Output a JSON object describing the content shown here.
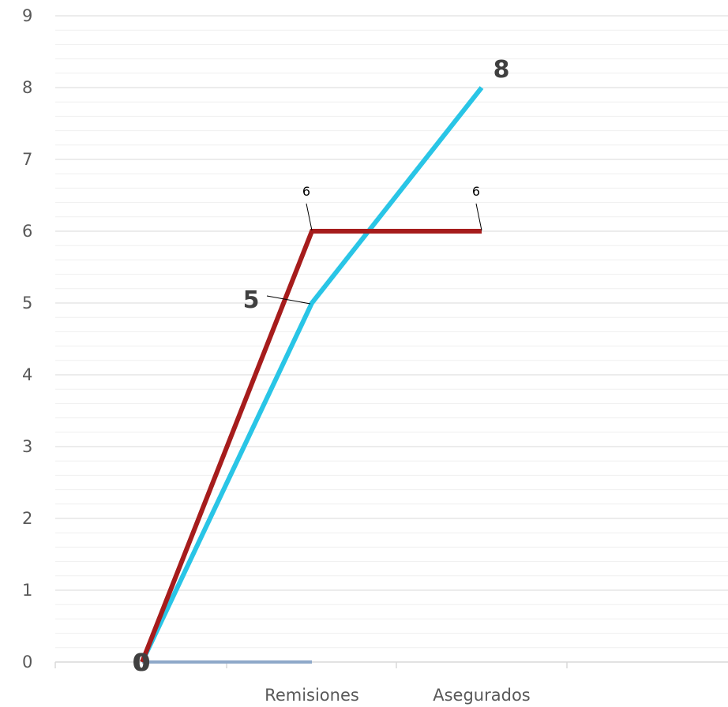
{
  "chart_data": {
    "type": "line",
    "title": "",
    "xlabel": "",
    "ylabel": "",
    "ylim": [
      0,
      9
    ],
    "yticks": [
      "0",
      "1",
      "2",
      "3",
      "4",
      "5",
      "6",
      "7",
      "8",
      "9"
    ],
    "categories": [
      "",
      "Remisiones",
      "Asegurados"
    ],
    "grid": true,
    "legend": "none",
    "series": [
      {
        "name": "",
        "color": "#29c5e6",
        "values": [
          0,
          5,
          8
        ],
        "labels": [
          "0",
          "5",
          "8"
        ],
        "label_style": "big"
      },
      {
        "name": "",
        "color": "#a61c1c",
        "values": [
          0,
          6,
          6
        ],
        "labels": [
          "0",
          "6",
          "6"
        ],
        "label_style": "small"
      },
      {
        "name": "",
        "color": "#8ea8c9",
        "values": [
          0,
          0,
          null
        ],
        "labels": [],
        "label_style": "none"
      }
    ]
  }
}
